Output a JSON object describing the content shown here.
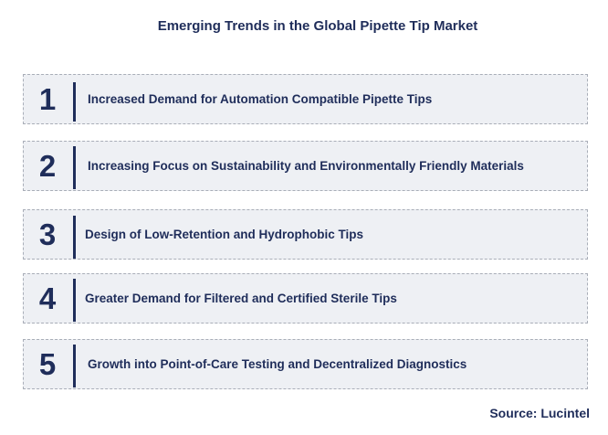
{
  "title": "Emerging Trends in the Global Pipette Tip Market",
  "trends": [
    {
      "number": "1",
      "label": "Increased Demand for Automation Compatible Pipette Tips"
    },
    {
      "number": "2",
      "label": "Increasing Focus on Sustainability and Environmentally Friendly Materials"
    },
    {
      "number": "3",
      "label": "Design of Low-Retention and Hydrophobic Tips"
    },
    {
      "number": "4",
      "label": "Greater Demand for Filtered and Certified Sterile Tips"
    },
    {
      "number": "5",
      "label": "Growth into Point-of-Care Testing and Decentralized Diagnostics"
    }
  ],
  "source": "Source: Lucintel",
  "colors": {
    "text": "#1f2d5a",
    "box_fill": "#eef0f4",
    "box_border": "#a9aeb8"
  }
}
